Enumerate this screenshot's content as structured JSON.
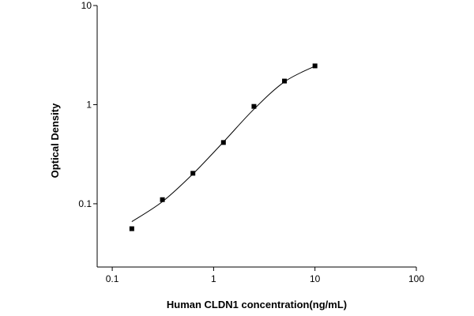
{
  "chart_data": {
    "type": "scatter",
    "xlabel": "Human CLDN1 concentration(ng/mL)",
    "ylabel": "Optical Density",
    "xscale": "log",
    "yscale": "log",
    "xlim": [
      0.071,
      100
    ],
    "ylim": [
      0.023,
      10
    ],
    "xticks": [
      0.1,
      1,
      10,
      100
    ],
    "yticks": [
      0.1,
      1,
      10
    ],
    "x": [
      0.156,
      0.3125,
      0.625,
      1.25,
      2.5,
      5,
      10
    ],
    "values": [
      0.056,
      0.11,
      0.203,
      0.415,
      0.96,
      1.73,
      2.46
    ],
    "color": "#000000",
    "curve": {
      "x": [
        0.156,
        0.3125,
        0.625,
        1.25,
        2.5,
        5,
        10
      ],
      "values": [
        0.066,
        0.105,
        0.2,
        0.42,
        0.9,
        1.7,
        2.45
      ]
    }
  }
}
